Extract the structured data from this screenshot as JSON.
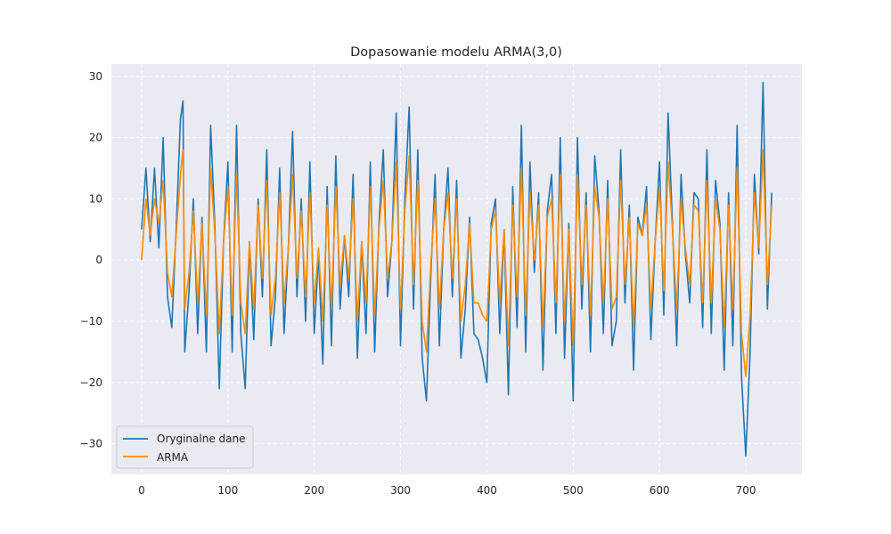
{
  "chart_data": {
    "type": "line",
    "title": "Dopasowanie modelu ARMA(3,0)",
    "xlabel": "",
    "ylabel": "",
    "xlim": [
      -35,
      765
    ],
    "ylim": [
      -35,
      32
    ],
    "xticks": [
      0,
      100,
      200,
      300,
      400,
      500,
      600,
      700
    ],
    "yticks": [
      -30,
      -20,
      -10,
      0,
      10,
      20,
      30
    ],
    "grid": true,
    "legend_position": "lower-left",
    "series": [
      {
        "name": "Oryginalne dane",
        "color": "#1f77b4",
        "x": [
          0,
          5,
          10,
          15,
          20,
          25,
          30,
          35,
          40,
          45,
          48,
          50,
          55,
          60,
          65,
          70,
          75,
          80,
          85,
          90,
          95,
          100,
          105,
          110,
          115,
          120,
          125,
          130,
          135,
          140,
          145,
          150,
          155,
          160,
          165,
          170,
          175,
          180,
          185,
          190,
          195,
          200,
          205,
          210,
          215,
          220,
          225,
          230,
          235,
          240,
          245,
          250,
          255,
          260,
          265,
          270,
          275,
          280,
          285,
          290,
          295,
          300,
          305,
          310,
          315,
          320,
          325,
          330,
          335,
          340,
          345,
          350,
          355,
          360,
          365,
          370,
          375,
          380,
          385,
          390,
          395,
          400,
          405,
          410,
          415,
          420,
          425,
          430,
          435,
          440,
          445,
          450,
          455,
          460,
          465,
          470,
          475,
          480,
          485,
          490,
          495,
          500,
          505,
          510,
          515,
          520,
          525,
          530,
          535,
          540,
          545,
          550,
          555,
          560,
          565,
          570,
          575,
          580,
          585,
          590,
          595,
          600,
          605,
          610,
          615,
          620,
          625,
          630,
          635,
          640,
          645,
          650,
          655,
          660,
          665,
          670,
          675,
          680,
          685,
          690,
          695,
          700,
          705,
          710,
          715,
          720,
          725,
          730
        ],
        "values": [
          5,
          15,
          3,
          15,
          2,
          20,
          -6,
          -11,
          5,
          23,
          26,
          -15,
          -5,
          10,
          -12,
          7,
          -15,
          22,
          5,
          -21,
          3,
          16,
          -15,
          22,
          -12,
          -21,
          3,
          -13,
          10,
          -6,
          18,
          -14,
          -6,
          15,
          -12,
          2,
          21,
          -6,
          10,
          -10,
          16,
          -12,
          1,
          -17,
          12,
          -14,
          17,
          -8,
          4,
          -6,
          14,
          -16,
          3,
          -12,
          16,
          -15,
          6,
          18,
          -6,
          3,
          24,
          -14,
          10,
          25,
          -8,
          18,
          -16,
          -23,
          -3,
          14,
          -14,
          5,
          15,
          -6,
          13,
          -16,
          -8,
          7,
          -12,
          -13,
          -16,
          -20,
          6,
          10,
          -12,
          5,
          -22,
          12,
          -11,
          22,
          -15,
          16,
          -2,
          11,
          -18,
          8,
          14,
          -12,
          20,
          -16,
          6,
          -23,
          20,
          -8,
          11,
          -15,
          17,
          8,
          -12,
          13,
          -14,
          -10,
          18,
          -7,
          9,
          -18,
          7,
          4,
          12,
          -13,
          3,
          16,
          -9,
          24,
          6,
          -14,
          14,
          1,
          -7,
          11,
          10,
          -11,
          18,
          -12,
          13,
          6,
          -18,
          11,
          -14,
          22,
          -19,
          -32,
          -15,
          14,
          1,
          29,
          -8,
          11
        ]
      },
      {
        "name": "ARMA",
        "color": "#ff8c00",
        "x": [
          0,
          5,
          10,
          15,
          20,
          25,
          30,
          35,
          40,
          45,
          48,
          50,
          55,
          60,
          65,
          70,
          75,
          80,
          85,
          90,
          95,
          100,
          105,
          110,
          115,
          120,
          125,
          130,
          135,
          140,
          145,
          150,
          155,
          160,
          165,
          170,
          175,
          180,
          185,
          190,
          195,
          200,
          205,
          210,
          215,
          220,
          225,
          230,
          235,
          240,
          245,
          250,
          255,
          260,
          265,
          270,
          275,
          280,
          285,
          290,
          295,
          300,
          305,
          310,
          315,
          320,
          325,
          330,
          335,
          340,
          345,
          350,
          355,
          360,
          365,
          370,
          375,
          380,
          385,
          390,
          395,
          400,
          405,
          410,
          415,
          420,
          425,
          430,
          435,
          440,
          445,
          450,
          455,
          460,
          465,
          470,
          475,
          480,
          485,
          490,
          495,
          500,
          505,
          510,
          515,
          520,
          525,
          530,
          535,
          540,
          545,
          550,
          555,
          560,
          565,
          570,
          575,
          580,
          585,
          590,
          595,
          600,
          605,
          610,
          615,
          620,
          625,
          630,
          635,
          640,
          645,
          650,
          655,
          660,
          665,
          670,
          675,
          680,
          685,
          690,
          695,
          700,
          705,
          710,
          715,
          720,
          725,
          730
        ],
        "values": [
          0,
          10,
          4,
          10,
          6,
          13,
          -2,
          -6,
          4,
          14,
          18,
          -8,
          -2,
          8,
          -7,
          6,
          -9,
          15,
          4,
          -12,
          3,
          12,
          -9,
          14,
          -7,
          -12,
          3,
          -8,
          9,
          -3,
          13,
          -9,
          -3,
          11,
          -7,
          2,
          14,
          -3,
          8,
          -6,
          11,
          -7,
          2,
          -10,
          9,
          -8,
          12,
          -4,
          4,
          -3,
          10,
          -10,
          3,
          -7,
          12,
          -9,
          5,
          13,
          -3,
          3,
          16,
          -8,
          8,
          17,
          -4,
          13,
          -10,
          -15,
          -1,
          10,
          -8,
          5,
          11,
          -3,
          10,
          -10,
          -4,
          6,
          -7,
          -7,
          -9,
          -10,
          5,
          8,
          -7,
          5,
          -14,
          9,
          -6,
          15,
          -9,
          11,
          0,
          9,
          -11,
          7,
          10,
          -7,
          14,
          -10,
          5,
          -14,
          14,
          -4,
          9,
          -9,
          12,
          7,
          -7,
          10,
          -8,
          -6,
          13,
          -4,
          7,
          -11,
          6,
          4,
          9,
          -8,
          3,
          12,
          -5,
          16,
          5,
          -8,
          10,
          2,
          -4,
          9,
          8,
          -7,
          13,
          -7,
          10,
          5,
          -11,
          9,
          -8,
          15,
          -12,
          -19,
          -9,
          11,
          2,
          18,
          -4,
          9
        ]
      }
    ]
  }
}
